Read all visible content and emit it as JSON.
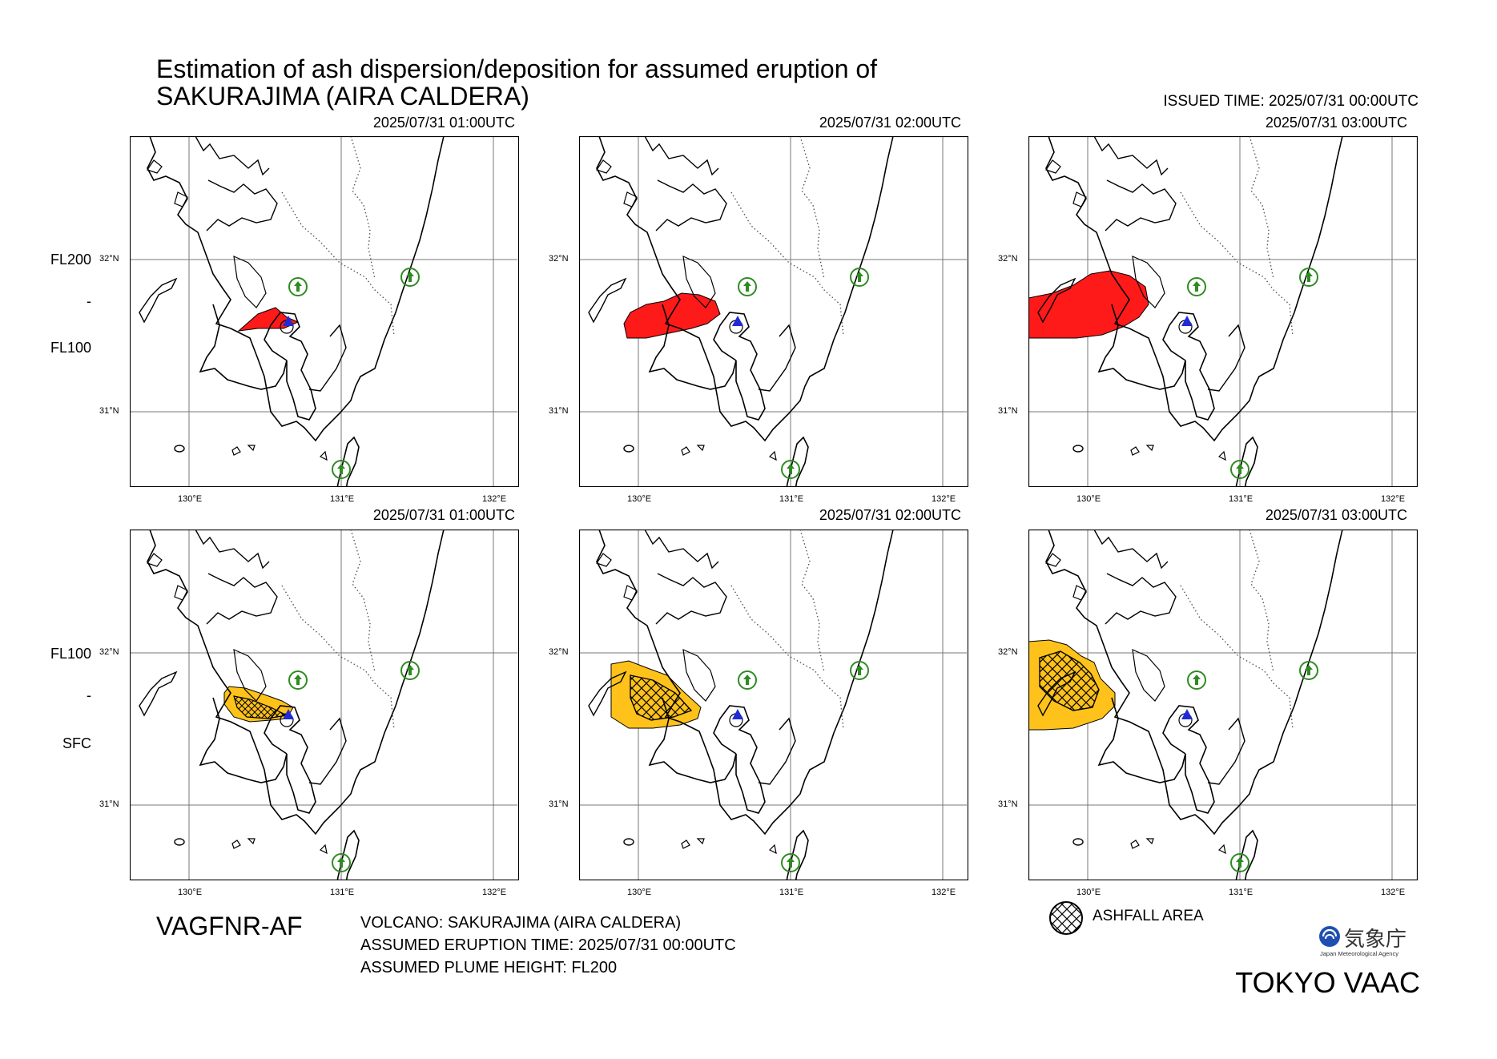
{
  "title_line1": "Estimation of ash dispersion/deposition for assumed eruption of",
  "title_line2": "SAKURAJIMA (AIRA CALDERA)",
  "issued_time": "ISSUED TIME: 2025/07/31 00:00UTC",
  "rows": [
    {
      "level_top": "FL200",
      "level_mid": "-",
      "level_bottom": "FL100"
    },
    {
      "level_top": "FL100",
      "level_mid": "-",
      "level_bottom": "SFC"
    }
  ],
  "panels": [
    {
      "time": "2025/07/31 01:00UTC"
    },
    {
      "time": "2025/07/31 02:00UTC"
    },
    {
      "time": "2025/07/31 03:00UTC"
    },
    {
      "time": "2025/07/31 01:00UTC"
    },
    {
      "time": "2025/07/31 02:00UTC"
    },
    {
      "time": "2025/07/31 03:00UTC"
    }
  ],
  "ticks": {
    "lat_32": "32°N",
    "lat_31": "31°N",
    "lon_130": "130°E",
    "lon_131": "131°E",
    "lon_132": "132°E"
  },
  "product_code": "VAGFNR-AF",
  "info": {
    "volcano": "VOLCANO: SAKURAJIMA (AIRA CALDERA)",
    "eruption_time": "ASSUMED ERUPTION TIME: 2025/07/31 00:00UTC",
    "plume_height": "ASSUMED PLUME HEIGHT: FL200"
  },
  "legend": {
    "ashfall": "ASHFALL AREA"
  },
  "agency": {
    "jp": "気象庁",
    "en": "Japan Meteorological Agency"
  },
  "vaac": "TOKYO VAAC",
  "colors": {
    "ash_upper": "#ff1a1a",
    "ash_lower": "#ffc21a",
    "volcano": "#1f2bd6",
    "airport": "#2e8b22"
  }
}
